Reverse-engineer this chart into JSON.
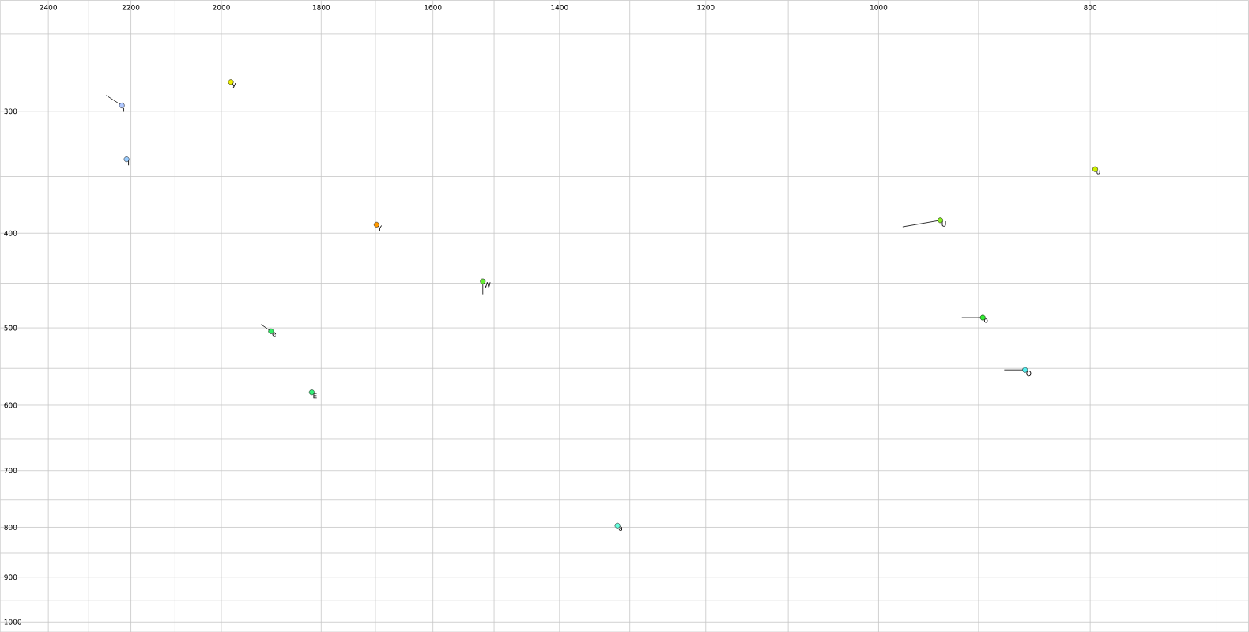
{
  "chart_data": {
    "type": "scatter",
    "log": "xy",
    "grid": true,
    "xlim": [
      2525,
      677
    ],
    "ylim": [
      1024,
      231
    ],
    "xticks": [
      2400,
      {
        "value": 2300,
        "label": null
      },
      2200,
      {
        "value": 2100,
        "label": null
      },
      2000,
      {
        "value": 1900,
        "label": null
      },
      1800,
      {
        "value": 1700,
        "label": null
      },
      1600,
      {
        "value": 1500,
        "label": null
      },
      1400,
      {
        "value": 1300,
        "label": null
      },
      1200,
      {
        "value": 1100,
        "label": null
      },
      1000,
      {
        "value": 900,
        "label": null
      },
      800,
      {
        "value": 700,
        "label": null
      }
    ],
    "yticks": [
      {
        "value": 250,
        "label": null
      },
      300,
      {
        "value": 350,
        "label": null
      },
      400,
      {
        "value": 450,
        "label": null
      },
      500,
      {
        "value": 550,
        "label": null
      },
      600,
      {
        "value": 650,
        "label": null
      },
      700,
      {
        "value": 750,
        "label": null
      },
      800,
      {
        "value": 850,
        "label": null
      },
      900,
      {
        "value": 950,
        "label": null
      },
      1000
    ],
    "series": [
      {
        "marker": "circle",
        "x": [
          1980,
          2221,
          2210,
          796,
          937,
          1698,
          1518,
          1898,
          896,
          857,
          1818,
          1317
        ],
        "values": [
          280,
          296,
          336,
          344,
          388,
          392,
          448,
          504,
          488,
          552,
          582,
          797
        ],
        "value_labels": [
          "y",
          "i",
          "I",
          "u",
          "U",
          "Y",
          "W",
          "e",
          "o",
          "O",
          "E",
          "a"
        ],
        "colors": [
          "#eef000",
          "#b0c8ff",
          "#99ccff",
          "#ccee00",
          "#88ee22",
          "#ff9900",
          "#66ee33",
          "#33ee66",
          "#33ee33",
          "#55eeee",
          "#33ee77",
          "#66ffdd"
        ]
      },
      {
        "type": "line",
        "marker": "none",
        "color": "#000000",
        "x": [
          2221,
          2258
        ],
        "values": [
          296,
          289
        ]
      },
      {
        "type": "line",
        "marker": "none",
        "color": "#000000",
        "x": [
          937,
          975
        ],
        "values": [
          388,
          394
        ]
      },
      {
        "type": "line",
        "marker": "none",
        "color": "#000000",
        "x": [
          1518,
          1518
        ],
        "values": [
          448,
          462
        ]
      },
      {
        "type": "line",
        "marker": "none",
        "color": "#000000",
        "x": [
          1898,
          1918
        ],
        "values": [
          504,
          496
        ]
      },
      {
        "type": "line",
        "marker": "none",
        "color": "#000000",
        "x": [
          896,
          916
        ],
        "values": [
          488,
          488
        ]
      },
      {
        "type": "line",
        "marker": "none",
        "color": "#000000",
        "x": [
          857,
          876
        ],
        "values": [
          552,
          552
        ]
      }
    ]
  }
}
